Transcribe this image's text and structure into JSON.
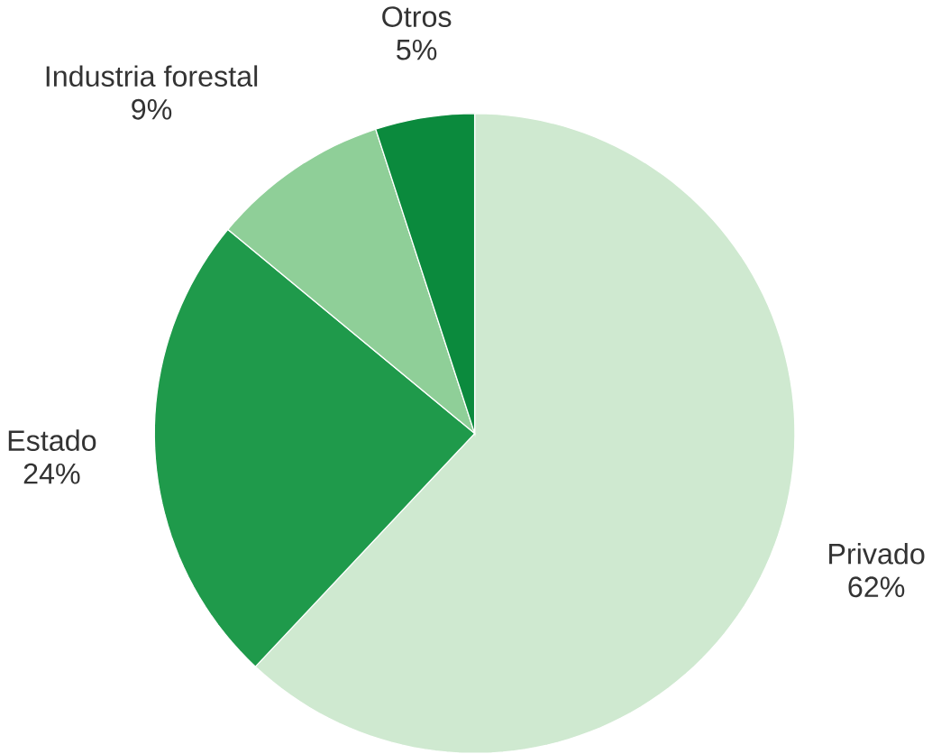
{
  "chart_data": {
    "type": "pie",
    "categories": [
      "Privado",
      "Estado",
      "Industria forestal",
      "Otros"
    ],
    "values": [
      62,
      24,
      9,
      5
    ],
    "colors": [
      "#cfe9d0",
      "#1f9a4b",
      "#8fcf98",
      "#0b8a3d"
    ],
    "value_labels": [
      "62%",
      "24%",
      "9%",
      "5%"
    ]
  }
}
